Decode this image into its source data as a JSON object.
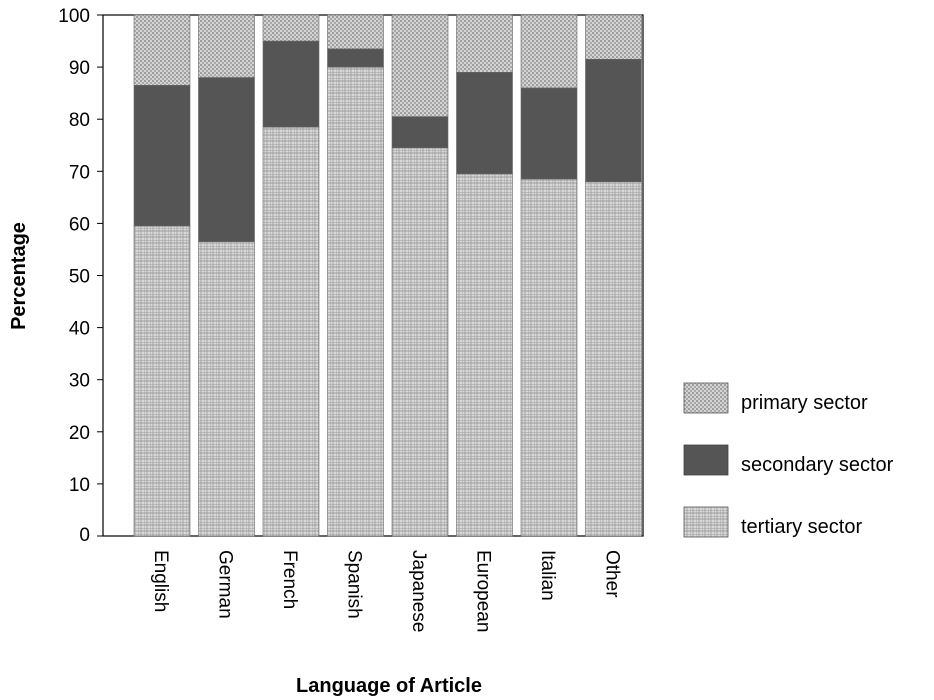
{
  "chart_data": {
    "type": "bar",
    "stacked": true,
    "title": "",
    "xlabel": "Language of Article",
    "ylabel": "Percentage",
    "ylim": [
      0,
      100
    ],
    "yticks": [
      "0",
      "10",
      "20",
      "30",
      "40",
      "50",
      "60",
      "70",
      "80",
      "90",
      "100"
    ],
    "categories": [
      "English",
      "German",
      "French",
      "Spanish",
      "Japanese",
      "European",
      "Italian",
      "Other"
    ],
    "series": [
      {
        "name": "tertiary sector",
        "values": [
          59.5,
          56.5,
          78.5,
          90.0,
          74.5,
          69.5,
          68.5,
          68.0
        ]
      },
      {
        "name": "secondary sector",
        "values": [
          27.0,
          31.5,
          16.5,
          3.5,
          6.0,
          19.5,
          17.5,
          23.5
        ]
      },
      {
        "name": "primary sector",
        "values": [
          13.5,
          12.0,
          5.0,
          6.5,
          19.5,
          11.0,
          14.0,
          8.5
        ]
      }
    ],
    "legend_position": "right",
    "legend": [
      "primary sector",
      "secondary sector",
      "tertiary sector"
    ],
    "grid": false
  }
}
